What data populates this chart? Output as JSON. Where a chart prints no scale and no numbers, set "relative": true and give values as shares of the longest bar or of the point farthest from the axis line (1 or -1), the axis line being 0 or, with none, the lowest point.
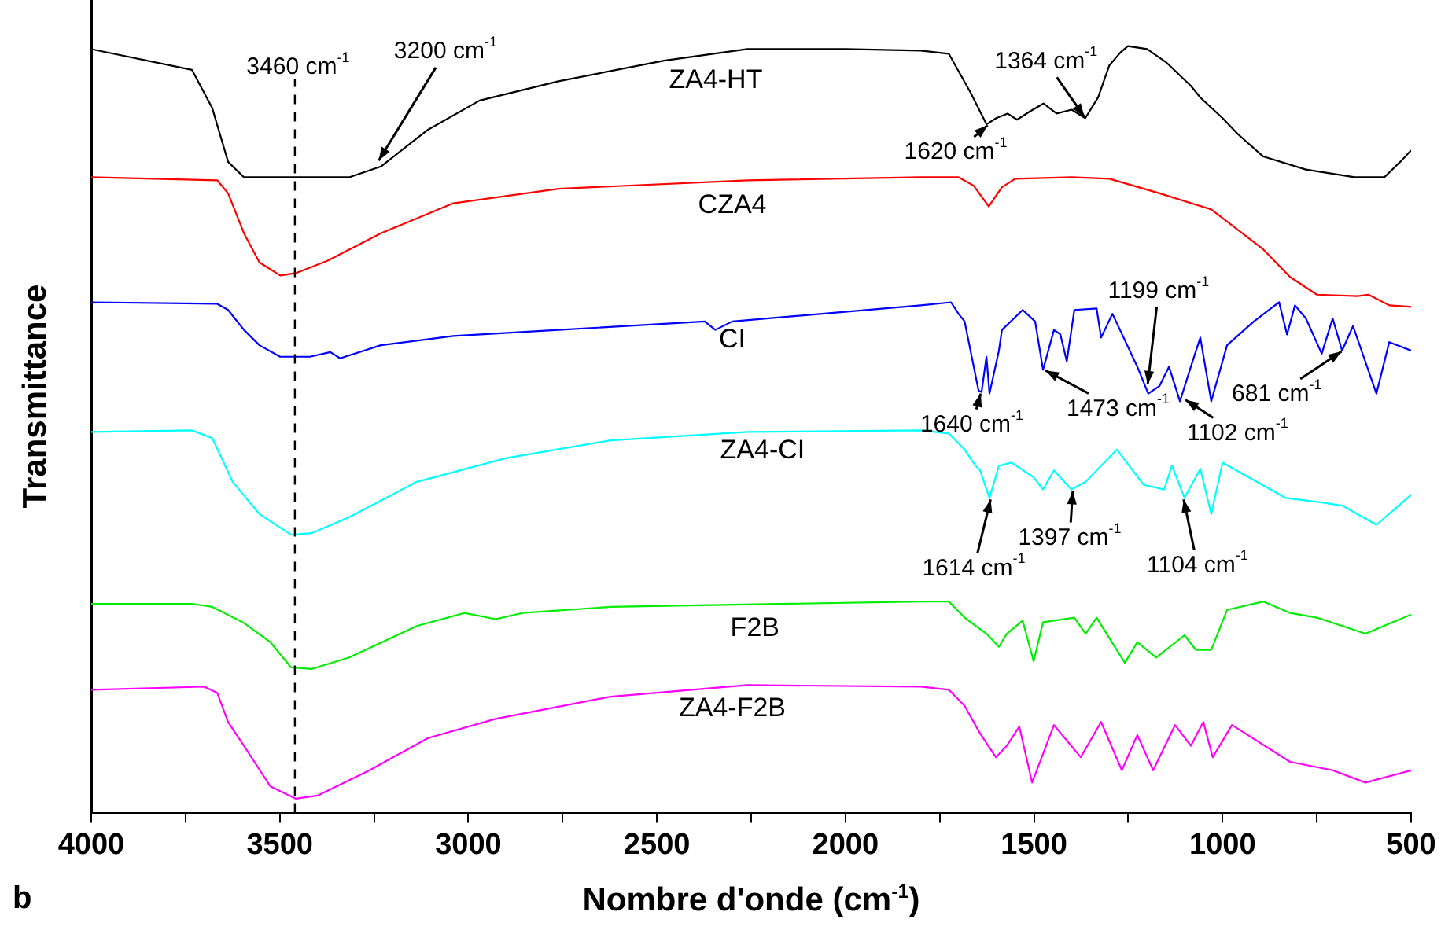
{
  "chart_data": {
    "type": "line",
    "relative": true,
    "xlabel": "Nombre d'onde (cm$^{-1}$)",
    "ylabel": "Transmittance",
    "xlim": [
      4000,
      500
    ],
    "xticks": [
      4000,
      {
        "value": 3750,
        "label": null
      },
      3500,
      {
        "value": 3250,
        "label": null
      },
      3000,
      {
        "value": 2750,
        "label": null
      },
      2500,
      {
        "value": 2250,
        "label": null
      },
      2000,
      {
        "value": 1750,
        "label": null
      },
      1500,
      {
        "value": 1250,
        "label": null
      },
      1000,
      {
        "value": 750,
        "label": null
      },
      500
    ],
    "legend": false,
    "marker": "none",
    "line_style": "solid",
    "series": [
      {
        "name": "ZA4-HT",
        "color": "#000000",
        "x": [
          4000,
          3733,
          3679,
          3637,
          3595,
          3460,
          3316,
          3232,
          3107,
          2970,
          2761,
          2481,
          2260,
          2000,
          1800,
          1726,
          1668,
          1626,
          1600,
          1570,
          1545,
          1510,
          1475,
          1440,
          1400,
          1364,
          1330,
          1300,
          1270,
          1251,
          1200,
          1150,
          1084,
          1059,
          1000,
          959,
          892,
          779,
          650,
          571,
          529,
          500
        ],
        "values": [
          0.996,
          0.969,
          0.919,
          0.849,
          0.829,
          0.829,
          0.829,
          0.843,
          0.891,
          0.929,
          0.954,
          0.981,
          0.996,
          0.996,
          0.994,
          0.99,
          0.939,
          0.898,
          0.906,
          0.912,
          0.904,
          0.915,
          0.925,
          0.912,
          0.917,
          0.906,
          0.933,
          0.975,
          0.992,
          1,
          0.996,
          0.979,
          0.948,
          0.933,
          0.906,
          0.885,
          0.856,
          0.839,
          0.829,
          0.829,
          0.849,
          0.864
        ]
      },
      {
        "name": "CZA4",
        "color": "#ff0000",
        "x": [
          4000,
          3666,
          3637,
          3595,
          3554,
          3499,
          3458,
          3374,
          3232,
          3040,
          2761,
          2260,
          1800,
          1700,
          1660,
          1620,
          1585,
          1550,
          1400,
          1300,
          1167,
          1030,
          892,
          821,
          750,
          642,
          613,
          558,
          500
        ],
        "values": [
          0.829,
          0.825,
          0.808,
          0.756,
          0.718,
          0.701,
          0.704,
          0.72,
          0.756,
          0.795,
          0.814,
          0.825,
          0.829,
          0.829,
          0.818,
          0.791,
          0.816,
          0.827,
          0.829,
          0.827,
          0.808,
          0.787,
          0.735,
          0.699,
          0.676,
          0.674,
          0.676,
          0.662,
          0.66
        ]
      },
      {
        "name": "CI",
        "color": "#0000ff",
        "x": [
          4000,
          3666,
          3637,
          3595,
          3554,
          3499,
          3420,
          3366,
          3340,
          3232,
          3040,
          2761,
          2373,
          2345,
          2300,
          1800,
          1720,
          1700,
          1684,
          1647,
          1639,
          1626,
          1618,
          1593,
          1585,
          1530,
          1497,
          1476,
          1447,
          1430,
          1413,
          1393,
          1334,
          1322,
          1292,
          1226,
          1197,
          1167,
          1142,
          1113,
          1084,
          1059,
          1030,
          988,
          917,
          850,
          829,
          808,
          779,
          737,
          708,
          683,
          654,
          592,
          558,
          500
        ],
        "values": [
          0.666,
          0.664,
          0.656,
          0.63,
          0.61,
          0.595,
          0.595,
          0.601,
          0.593,
          0.61,
          0.622,
          0.63,
          0.641,
          0.63,
          0.641,
          0.662,
          0.666,
          0.651,
          0.641,
          0.551,
          0.549,
          0.595,
          0.547,
          0.603,
          0.63,
          0.656,
          0.641,
          0.578,
          0.63,
          0.624,
          0.589,
          0.656,
          0.658,
          0.62,
          0.651,
          0.582,
          0.547,
          0.557,
          0.582,
          0.537,
          0.582,
          0.62,
          0.537,
          0.61,
          0.641,
          0.666,
          0.624,
          0.662,
          0.645,
          0.599,
          0.645,
          0.603,
          0.635,
          0.547,
          0.614,
          0.603
        ]
      },
      {
        "name": "ZA4-CI",
        "color": "#00ffff",
        "x": [
          4000,
          3733,
          3679,
          3625,
          3554,
          3470,
          3416,
          3316,
          3137,
          2899,
          2623,
          2260,
          1800,
          1726,
          1684,
          1655,
          1643,
          1618,
          1593,
          1560,
          1501,
          1476,
          1447,
          1401,
          1363,
          1280,
          1209,
          1155,
          1134,
          1101,
          1059,
          1030,
          1000,
          833,
          737,
          683,
          592,
          500
        ],
        "values": [
          0.497,
          0.499,
          0.489,
          0.432,
          0.39,
          0.363,
          0.365,
          0.386,
          0.432,
          0.463,
          0.486,
          0.497,
          0.499,
          0.495,
          0.474,
          0.453,
          0.447,
          0.411,
          0.453,
          0.457,
          0.438,
          0.422,
          0.447,
          0.422,
          0.432,
          0.474,
          0.428,
          0.422,
          0.453,
          0.411,
          0.449,
          0.39,
          0.457,
          0.411,
          0.405,
          0.401,
          0.376,
          0.415
        ]
      },
      {
        "name": "F2B",
        "color": "#00ee00",
        "x": [
          4000,
          3733,
          3679,
          3595,
          3525,
          3470,
          3416,
          3316,
          3137,
          3011,
          2928,
          2857,
          2623,
          1800,
          1726,
          1684,
          1626,
          1593,
          1572,
          1530,
          1501,
          1476,
          1393,
          1363,
          1334,
          1259,
          1226,
          1176,
          1101,
          1071,
          1030,
          988,
          892,
          821,
          750,
          621,
          500
        ],
        "values": [
          0.273,
          0.273,
          0.269,
          0.248,
          0.223,
          0.19,
          0.188,
          0.203,
          0.244,
          0.261,
          0.253,
          0.261,
          0.269,
          0.276,
          0.276,
          0.255,
          0.234,
          0.217,
          0.234,
          0.251,
          0.198,
          0.249,
          0.255,
          0.234,
          0.255,
          0.196,
          0.223,
          0.203,
          0.232,
          0.213,
          0.213,
          0.265,
          0.276,
          0.261,
          0.255,
          0.234,
          0.259
        ]
      },
      {
        "name": "ZA4-F2B",
        "color": "#ff00ff",
        "x": [
          4000,
          3700,
          3666,
          3637,
          3595,
          3525,
          3458,
          3400,
          3262,
          3107,
          2928,
          2623,
          2260,
          1800,
          1726,
          1684,
          1643,
          1601,
          1572,
          1539,
          1505,
          1447,
          1376,
          1322,
          1267,
          1226,
          1184,
          1126,
          1084,
          1051,
          1026,
          975,
          821,
          708,
          621,
          500
        ],
        "values": [
          0.161,
          0.165,
          0.157,
          0.119,
          0.088,
          0.035,
          0.019,
          0.023,
          0.056,
          0.098,
          0.123,
          0.152,
          0.167,
          0.165,
          0.161,
          0.14,
          0.104,
          0.073,
          0.088,
          0.113,
          0.04,
          0.115,
          0.073,
          0.119,
          0.056,
          0.102,
          0.056,
          0.115,
          0.088,
          0.119,
          0.073,
          0.115,
          0.067,
          0.056,
          0.04,
          0.056
        ]
      }
    ],
    "ref_lines": [
      {
        "axis": "x",
        "value": 3460,
        "label": "3460 cm$^{-1}$",
        "line_style": "dashed",
        "color": "#000000"
      }
    ],
    "annotations": [
      {
        "text": "3200 cm$^{-1}$",
        "x": 3240,
        "y": 0.849
      },
      {
        "text": "1364 cm$^{-1}$",
        "x": 1364,
        "y": 0.906
      },
      {
        "text": "1620 cm$^{-1}$",
        "x": 1620,
        "y": 0.898
      },
      {
        "text": "1199 cm$^{-1}$",
        "x": 1199,
        "y": 0.557
      },
      {
        "text": "1640 cm$^{-1}$",
        "x": 1640,
        "y": 0.549
      },
      {
        "text": "1473 cm$^{-1}$",
        "x": 1473,
        "y": 0.578
      },
      {
        "text": "1102 cm$^{-1}$",
        "x": 1102,
        "y": 0.54
      },
      {
        "text": "681 cm$^{-1}$",
        "x": 681,
        "y": 0.603
      },
      {
        "text": "1614 cm$^{-1}$",
        "x": 1614,
        "y": 0.411
      },
      {
        "text": "1397 cm$^{-1}$",
        "x": 1397,
        "y": 0.422
      },
      {
        "text": "1104 cm$^{-1}$",
        "x": 1104,
        "y": 0.411
      },
      "b"
    ]
  }
}
